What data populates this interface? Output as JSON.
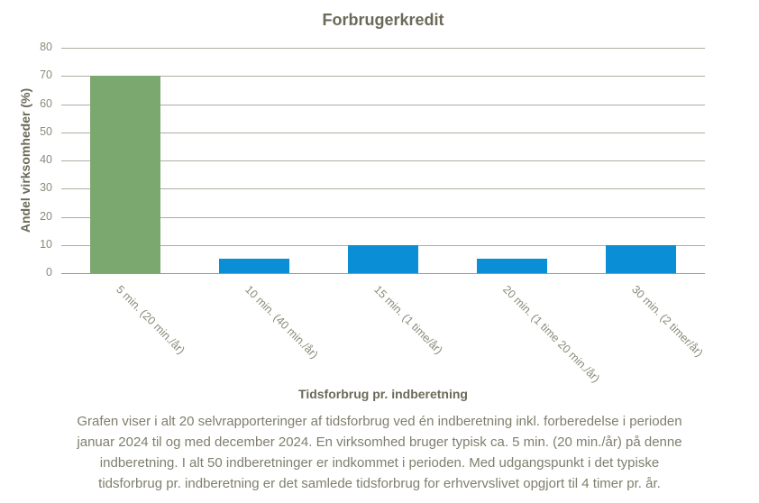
{
  "chart_data": {
    "type": "bar",
    "title": "Forbrugerkredit",
    "categories": [
      "5 min. (20 min./år)",
      "10 min. (40 min./år)",
      "15 min. (1 time/år)",
      "20 min. (1 time 20 min./år)",
      "30 min. (2 timer/år)"
    ],
    "values": [
      70,
      5,
      10,
      5,
      10
    ],
    "xlabel": "Tidsforbrug pr. indberetning",
    "ylabel": "Andel virksomheder (%)",
    "ylim": [
      0,
      80
    ],
    "ytick_step": 10,
    "ytick_labels": [
      "0",
      "10",
      "20",
      "30",
      "40",
      "50",
      "60",
      "70",
      "80"
    ],
    "grid": true,
    "legend": false,
    "bar_colors": [
      "#7aa86e",
      "#0a8ed6",
      "#0a8ed6",
      "#0a8ed6",
      "#0a8ed6"
    ]
  },
  "colors": {
    "title_text": "#6b6a59",
    "tick_text": "#8b897b",
    "caption_text": "#807e6d",
    "gridline": "#adada3",
    "axis_line": "#9a998f",
    "highlight_bar": "#7aa86e",
    "default_bar": "#0a8ed6",
    "background": "#ffffff"
  },
  "caption": {
    "lines": [
      "Grafen viser i alt 20 selvrapporteringer af tidsforbrug ved én indberetning inkl. forberedelse i perioden",
      "januar 2024 til og med december 2024. En virksomhed bruger typisk ca. 5 min. (20 min./år) på denne",
      "indberetning. I alt 50 indberetninger er indkommet i perioden. Med udgangspunkt i det typiske",
      "tidsforbrug pr. indberetning er det samlede tidsforbrug for erhvervslivet opgjort til 4 timer pr. år."
    ]
  }
}
